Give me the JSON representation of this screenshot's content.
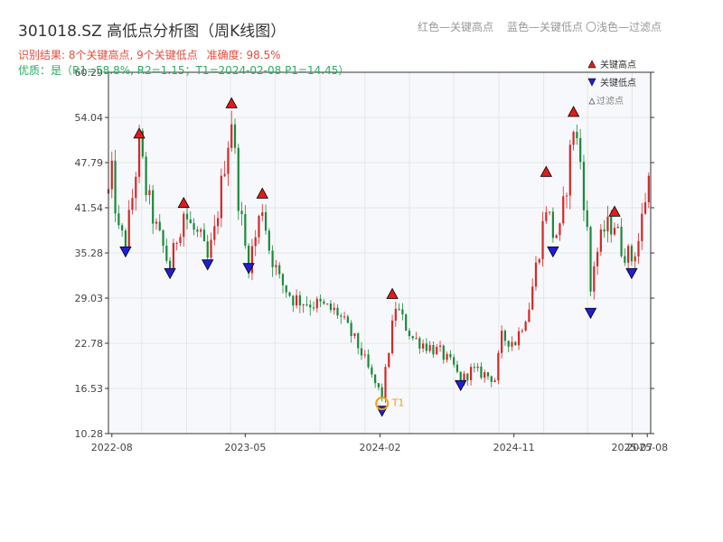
{
  "title": "301018.SZ 高低点分析图（周K线图）",
  "subtitle_result": "识别结果: 8个关键高点, 9个关键低点",
  "subtitle_accuracy": "准确度: 98.5%",
  "subtitle_quality": "优质：是（R1=58.8%, R2=1.15；T1=2024-02-08 P1=14.45）",
  "top_legend": {
    "red": "红色—关键高点",
    "blue": "蓝色—关键低点",
    "light": "〇浅色—过滤点"
  },
  "legend": {
    "high": "关键高点",
    "low": "关键低点",
    "filtered": "过滤点"
  },
  "colors": {
    "title": "#333333",
    "result": "#e74c3c",
    "quality": "#27ae60",
    "up_candle": "#d62728",
    "down_candle": "#1a8a3a",
    "high_marker": "#e31a1c",
    "low_marker": "#1f1fd6",
    "t1_marker": "#f39c12",
    "plot_bg": "#f7f8fb"
  },
  "chart_data": {
    "type": "candlestick",
    "x_ticks": [
      "2022-08",
      "2023-05",
      "2024-02",
      "2024-11",
      "2025-07",
      "2025-08"
    ],
    "y_ticks": [
      "10.28",
      "16.53",
      "22.78",
      "29.03",
      "35.28",
      "41.54",
      "47.79",
      "54.04",
      "60.29"
    ],
    "ylim": [
      10.28,
      60.29
    ],
    "xlim": [
      "2022-07-25",
      "2025-08-08"
    ],
    "grid": true,
    "legend_position": "top-right",
    "control_points": [
      [
        "2022-07-25",
        43.5
      ],
      [
        "2022-08-01",
        46.0
      ],
      [
        "2022-08-15",
        38.0
      ],
      [
        "2022-08-29",
        36.8
      ],
      [
        "2022-09-12",
        43.0
      ],
      [
        "2022-09-26",
        50.5
      ],
      [
        "2022-10-10",
        44.0
      ],
      [
        "2022-10-31",
        38.5
      ],
      [
        "2022-11-14",
        36.0
      ],
      [
        "2022-11-28",
        33.0
      ],
      [
        "2022-12-12",
        37.5
      ],
      [
        "2022-12-26",
        41.0
      ],
      [
        "2023-01-09",
        39.0
      ],
      [
        "2023-01-30",
        37.0
      ],
      [
        "2023-02-13",
        34.2
      ],
      [
        "2023-02-27",
        38.0
      ],
      [
        "2023-03-13",
        44.5
      ],
      [
        "2023-03-20",
        48.0
      ],
      [
        "2023-04-03",
        54.0
      ],
      [
        "2023-04-17",
        43.0
      ],
      [
        "2023-05-01",
        36.0
      ],
      [
        "2023-05-08",
        34.0
      ],
      [
        "2023-05-22",
        37.5
      ],
      [
        "2023-06-05",
        42.0
      ],
      [
        "2023-06-19",
        36.0
      ],
      [
        "2023-07-10",
        31.5
      ],
      [
        "2023-08-07",
        29.0
      ],
      [
        "2023-09-04",
        28.5
      ],
      [
        "2023-10-02",
        28.0
      ],
      [
        "2023-11-06",
        27.0
      ],
      [
        "2023-12-04",
        24.0
      ],
      [
        "2023-12-25",
        21.5
      ],
      [
        "2024-01-15",
        18.0
      ],
      [
        "2024-02-05",
        15.5
      ],
      [
        "2024-02-19",
        22.0
      ],
      [
        "2024-03-04",
        28.0
      ],
      [
        "2024-03-18",
        26.0
      ],
      [
        "2024-04-08",
        23.5
      ],
      [
        "2024-05-06",
        22.5
      ],
      [
        "2024-06-03",
        21.5
      ],
      [
        "2024-07-01",
        19.5
      ],
      [
        "2024-07-15",
        17.5
      ],
      [
        "2024-08-05",
        19.0
      ],
      [
        "2024-09-02",
        18.5
      ],
      [
        "2024-09-23",
        17.8
      ],
      [
        "2024-10-07",
        23.5
      ],
      [
        "2024-11-04",
        23.0
      ],
      [
        "2024-12-02",
        28.0
      ],
      [
        "2024-12-23",
        36.0
      ],
      [
        "2025-01-06",
        42.0
      ],
      [
        "2025-01-20",
        38.0
      ],
      [
        "2025-02-03",
        38.0
      ],
      [
        "2025-02-17",
        45.0
      ],
      [
        "2025-03-03",
        53.0
      ],
      [
        "2025-03-17",
        48.0
      ],
      [
        "2025-03-31",
        38.0
      ],
      [
        "2025-04-07",
        30.0
      ],
      [
        "2025-04-14",
        34.0
      ],
      [
        "2025-05-05",
        38.5
      ],
      [
        "2025-05-26",
        39.5
      ],
      [
        "2025-06-09",
        36.0
      ],
      [
        "2025-06-30",
        34.5
      ],
      [
        "2025-07-14",
        37.0
      ],
      [
        "2025-07-28",
        43.0
      ],
      [
        "2025-08-08",
        47.0
      ]
    ],
    "key_highs": [
      {
        "date": "2022-09-26",
        "value": 50.8
      },
      {
        "date": "2022-12-26",
        "value": 41.2
      },
      {
        "date": "2023-04-03",
        "value": 55.0
      },
      {
        "date": "2023-06-05",
        "value": 42.5
      },
      {
        "date": "2024-02-26",
        "value": 28.6
      },
      {
        "date": "2025-01-06",
        "value": 45.5
      },
      {
        "date": "2025-03-03",
        "value": 53.8
      },
      {
        "date": "2025-05-26",
        "value": 40.0
      }
    ],
    "key_lows": [
      {
        "date": "2022-08-29",
        "value": 36.5
      },
      {
        "date": "2022-11-28",
        "value": 33.5
      },
      {
        "date": "2023-02-13",
        "value": 34.7
      },
      {
        "date": "2023-05-08",
        "value": 34.2
      },
      {
        "date": "2024-02-05",
        "value": 14.45
      },
      {
        "date": "2024-07-15",
        "value": 18.0
      },
      {
        "date": "2025-01-20",
        "value": 36.5
      },
      {
        "date": "2025-04-07",
        "value": 28.0
      },
      {
        "date": "2025-06-30",
        "value": 33.5
      }
    ],
    "t1": {
      "date": "2024-02-05",
      "value": 14.45,
      "label": "T1"
    }
  }
}
